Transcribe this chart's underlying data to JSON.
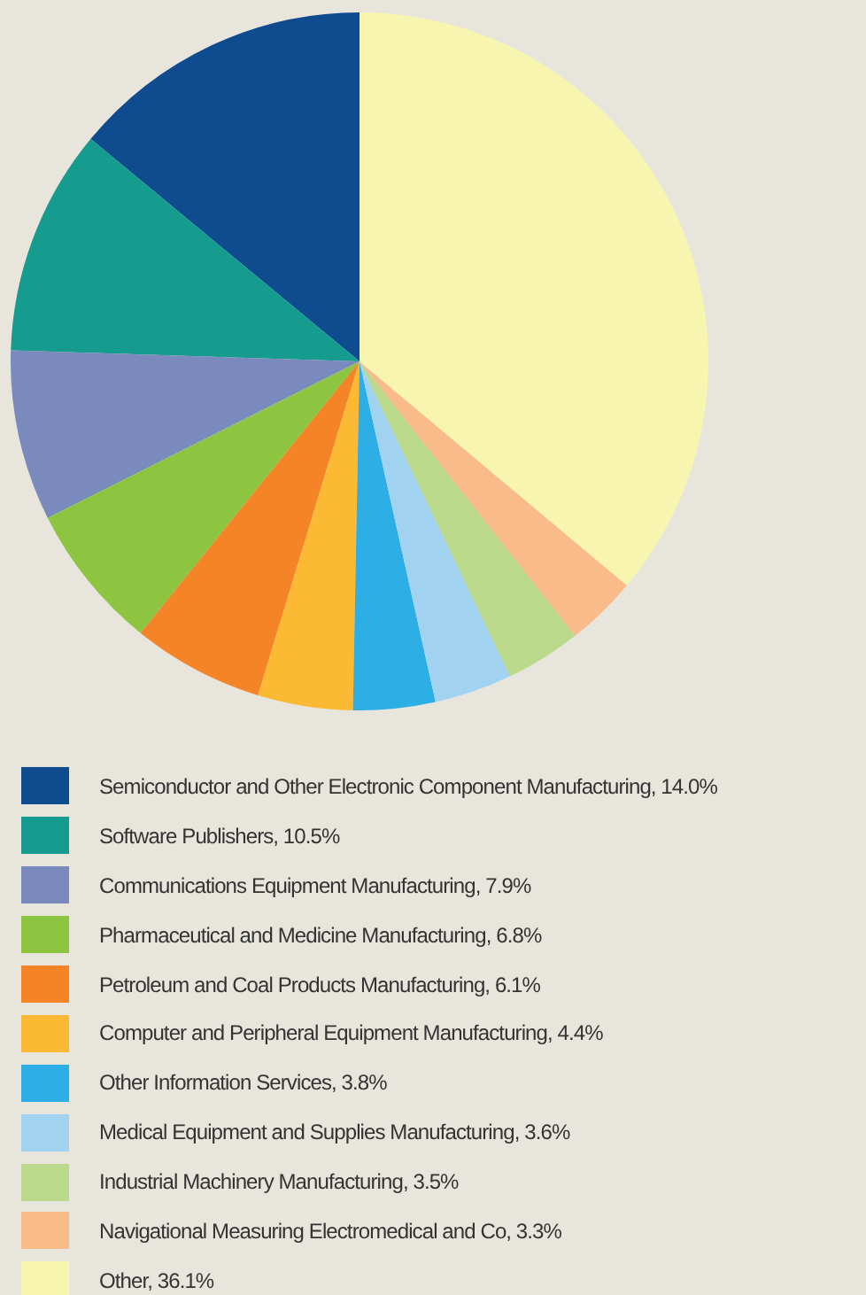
{
  "chart_data": {
    "type": "pie",
    "categories": [
      "Semiconductor and Other Electronic Component Manufacturing",
      "Software Publishers",
      "Communications Equipment Manufacturing",
      "Pharmaceutical and Medicine Manufacturing",
      "Petroleum and Coal Products Manufacturing",
      "Computer and Peripheral Equipment Manufacturing",
      "Other Information Services",
      "Medical Equipment and Supplies Manufacturing",
      "Industrial Machinery Manufacturing",
      "Navigational Measuring Electromedical and Co",
      "Other"
    ],
    "values": [
      14.0,
      10.5,
      7.9,
      6.8,
      6.1,
      4.4,
      3.8,
      3.6,
      3.5,
      3.3,
      36.1
    ],
    "value_labels": [
      "14.0%",
      "10.5%",
      "7.9%",
      "6.8%",
      "6.1%",
      "4.4%",
      "3.8%",
      "3.6%",
      "3.5%",
      "3.3%",
      "36.1%"
    ],
    "colors": [
      "#0e4c8f",
      "#169b8f",
      "#7a8abc",
      "#8dc540",
      "#f58426",
      "#fcb933",
      "#2daee5",
      "#a1d3f0",
      "#bad98a",
      "#f9bb8a",
      "#f8f5b0"
    ],
    "legend": "bottom"
  }
}
